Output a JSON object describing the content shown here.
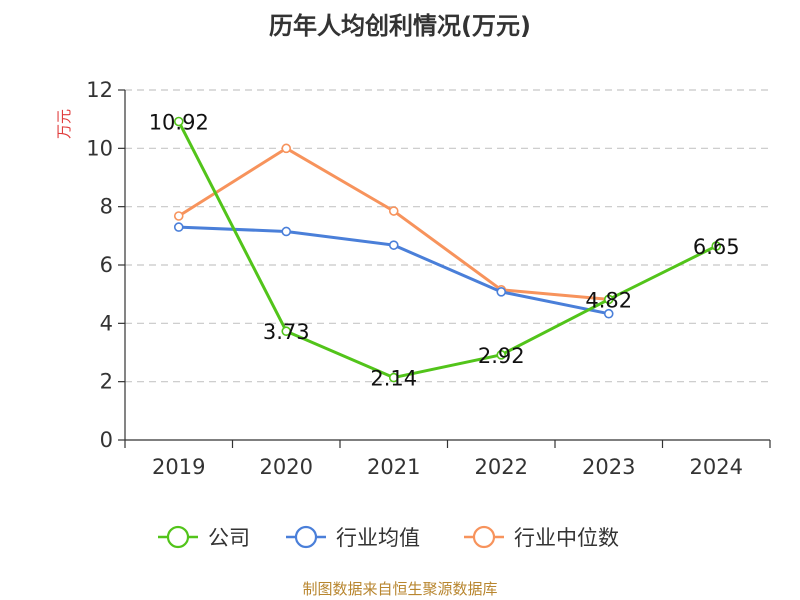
{
  "chart_data": {
    "type": "line",
    "title": "历年人均创利情况(万元)",
    "ylabel": "万元",
    "categories": [
      "2019",
      "2020",
      "2021",
      "2022",
      "2023",
      "2024"
    ],
    "ylim": [
      0,
      12
    ],
    "yticks": [
      0,
      2,
      4,
      6,
      8,
      10,
      12
    ],
    "grid": true,
    "legend_position": "bottom",
    "series": [
      {
        "name": "公司",
        "color": "#52c41a",
        "values": [
          10.92,
          3.73,
          2.14,
          2.92,
          4.82,
          6.65
        ],
        "data_labels": [
          "10.92",
          "3.73",
          "2.14",
          "2.92",
          "4.82",
          "6.65"
        ]
      },
      {
        "name": "行业均值",
        "color": "#4a7fd9",
        "values": [
          7.3,
          7.15,
          6.68,
          5.08,
          4.33,
          null
        ]
      },
      {
        "name": "行业中位数",
        "color": "#f7935c",
        "values": [
          7.68,
          10.0,
          7.85,
          5.15,
          4.82,
          null
        ]
      }
    ],
    "source": "制图数据来自恒生聚源数据库"
  }
}
